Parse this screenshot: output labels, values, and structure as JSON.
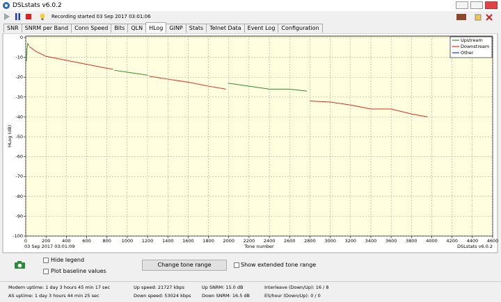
{
  "window": {
    "title": "DSLstats v6.0.2"
  },
  "toolbar": {
    "status": "Recording started 03 Sep 2017 03:01:06"
  },
  "tabs": [
    "SNR",
    "SNRM per Band",
    "Conn Speed",
    "Bits",
    "QLN",
    "HLog",
    "GINP",
    "Stats",
    "Telnet Data",
    "Event Log",
    "Configuration"
  ],
  "chart_data": {
    "type": "line",
    "ylabel": "HLog (dB)",
    "xlabel": "Tone number",
    "timestamp": "03 Sep 2017 03:01:09",
    "watermark": "DSLstats v6.0.2",
    "xlim": [
      0,
      4600
    ],
    "ylim": [
      -100,
      0
    ],
    "xticks": [
      0,
      200,
      400,
      600,
      800,
      1000,
      1200,
      1400,
      1600,
      1800,
      2000,
      2200,
      2400,
      2600,
      2800,
      3000,
      3200,
      3400,
      3600,
      3800,
      4000,
      4200,
      4400,
      4600
    ],
    "yticks": [
      0,
      -10,
      -20,
      -30,
      -40,
      -50,
      -60,
      -70,
      -80,
      -90,
      -100
    ],
    "grid": true,
    "legend": "top-right",
    "series": [
      {
        "name": "Upstream",
        "color": "#2e8b2e",
        "x": [
          6,
          12,
          20,
          32,
          null,
          870,
          1000,
          1205,
          null,
          1993,
          2200,
          2400,
          2600,
          2770
        ],
        "values": [
          -12,
          -6,
          -3,
          -4,
          null,
          -16.5,
          -17.5,
          -19,
          null,
          -23,
          -24.5,
          -26,
          -26,
          -27
        ]
      },
      {
        "name": "Downstream",
        "color": "#e8261c",
        "x": [
          33,
          100,
          200,
          400,
          600,
          800,
          859,
          null,
          1216,
          1400,
          1600,
          1800,
          1971,
          null,
          2800,
          3000,
          3200,
          3400,
          3600,
          3800,
          3960
        ],
        "values": [
          -4.5,
          -7,
          -9.5,
          -11.5,
          -13.5,
          -15.5,
          -16,
          null,
          -19.5,
          -21,
          -22.5,
          -24.5,
          -26,
          null,
          -32,
          -32.5,
          -34,
          -36,
          -36,
          -38.5,
          -40
        ]
      },
      {
        "name": "Other",
        "color": "#1f2fd6",
        "x": [],
        "values": []
      }
    ]
  },
  "controls": {
    "hide_legend": "Hide legend",
    "plot_baseline": "Plot baseline values",
    "button": "Change tone range",
    "extended": "Show extended tone range"
  },
  "status": [
    [
      "Modem uptime: 1 day 3 hours 45 min 17 sec",
      "AS uptime: 1 day 3 hours 44 min 25 sec"
    ],
    [
      "Up speed: 21727 kbps",
      "Down speed: 53024 kbps"
    ],
    [
      "Up SNRM: 15.0 dB",
      "Down SNRM: 16.5 dB"
    ],
    [
      "Interleave (Down/Up): 16 / 8",
      "ES/hour (Down/Up): 0 / 0"
    ]
  ]
}
